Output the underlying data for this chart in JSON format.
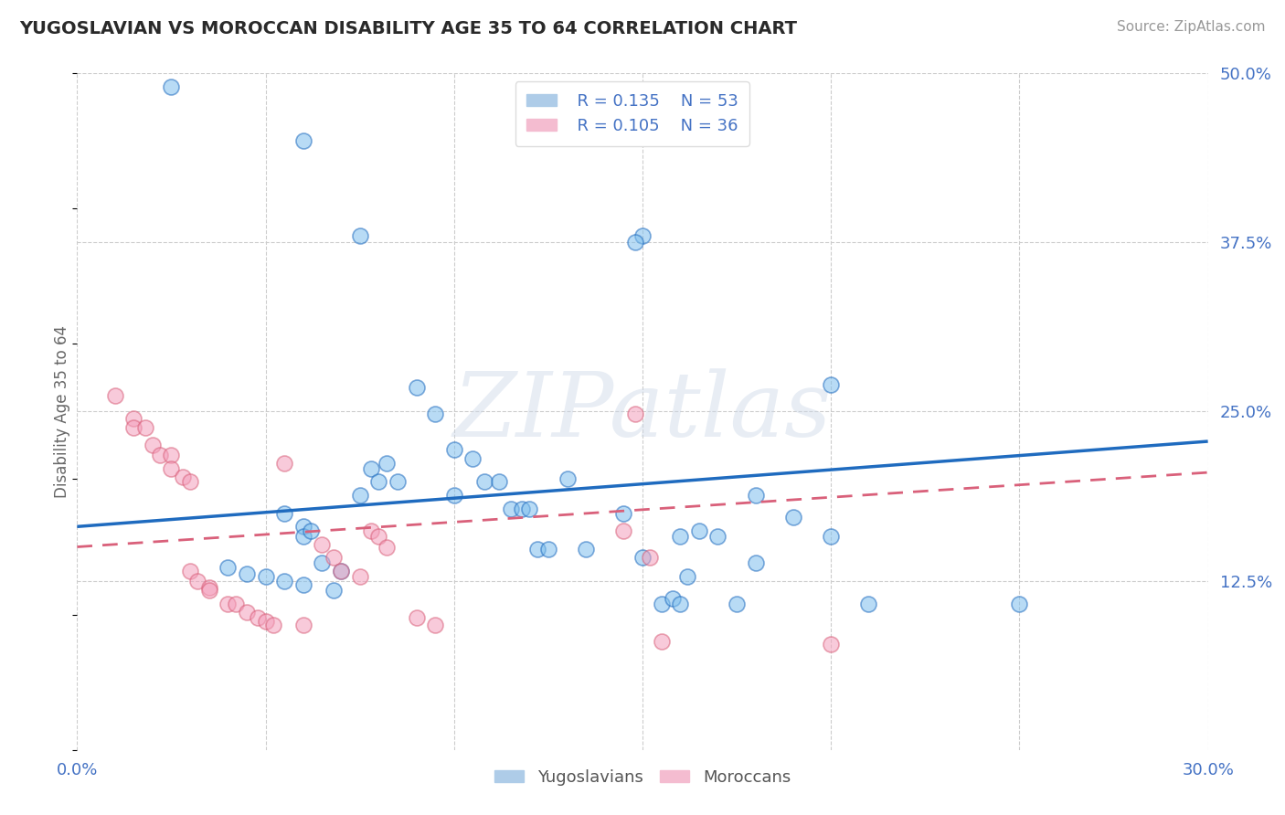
{
  "title": "YUGOSLAVIAN VS MOROCCAN DISABILITY AGE 35 TO 64 CORRELATION CHART",
  "source": "Source: ZipAtlas.com",
  "ylabel": "Disability Age 35 to 64",
  "xlim": [
    0.0,
    0.3
  ],
  "ylim": [
    0.0,
    0.5
  ],
  "xtick_positions": [
    0.0,
    0.05,
    0.1,
    0.15,
    0.2,
    0.25,
    0.3
  ],
  "xtick_labels": [
    "0.0%",
    "",
    "",
    "",
    "",
    "",
    "30.0%"
  ],
  "ytick_positions": [
    0.0,
    0.125,
    0.25,
    0.375,
    0.5
  ],
  "ytick_labels_right": [
    "",
    "12.5%",
    "25.0%",
    "37.5%",
    "50.0%"
  ],
  "legend_r1": "R = 0.135",
  "legend_n1": "N = 53",
  "legend_r2": "R = 0.105",
  "legend_n2": "N = 36",
  "blue_color": "#7fbfed",
  "pink_color": "#f4a0bc",
  "blue_line_color": "#1f6bbf",
  "pink_line_color": "#d9607a",
  "axis_color": "#4472c4",
  "watermark": "ZIPatlas",
  "blue_line_x": [
    0.0,
    0.3
  ],
  "blue_line_y": [
    0.165,
    0.228
  ],
  "pink_line_x": [
    0.0,
    0.3
  ],
  "pink_line_y": [
    0.15,
    0.205
  ],
  "yugoslav_points": [
    [
      0.025,
      0.49
    ],
    [
      0.06,
      0.45
    ],
    [
      0.075,
      0.38
    ],
    [
      0.15,
      0.38
    ],
    [
      0.148,
      0.375
    ],
    [
      0.04,
      0.135
    ],
    [
      0.045,
      0.13
    ],
    [
      0.05,
      0.128
    ],
    [
      0.055,
      0.125
    ],
    [
      0.055,
      0.175
    ],
    [
      0.06,
      0.165
    ],
    [
      0.06,
      0.158
    ],
    [
      0.06,
      0.122
    ],
    [
      0.062,
      0.162
    ],
    [
      0.065,
      0.138
    ],
    [
      0.068,
      0.118
    ],
    [
      0.07,
      0.132
    ],
    [
      0.075,
      0.188
    ],
    [
      0.078,
      0.208
    ],
    [
      0.08,
      0.198
    ],
    [
      0.082,
      0.212
    ],
    [
      0.085,
      0.198
    ],
    [
      0.09,
      0.268
    ],
    [
      0.095,
      0.248
    ],
    [
      0.1,
      0.222
    ],
    [
      0.1,
      0.188
    ],
    [
      0.105,
      0.215
    ],
    [
      0.108,
      0.198
    ],
    [
      0.112,
      0.198
    ],
    [
      0.115,
      0.178
    ],
    [
      0.118,
      0.178
    ],
    [
      0.12,
      0.178
    ],
    [
      0.122,
      0.148
    ],
    [
      0.125,
      0.148
    ],
    [
      0.13,
      0.2
    ],
    [
      0.135,
      0.148
    ],
    [
      0.15,
      0.142
    ],
    [
      0.155,
      0.108
    ],
    [
      0.158,
      0.112
    ],
    [
      0.16,
      0.108
    ],
    [
      0.162,
      0.128
    ],
    [
      0.165,
      0.162
    ],
    [
      0.17,
      0.158
    ],
    [
      0.175,
      0.108
    ],
    [
      0.18,
      0.188
    ],
    [
      0.18,
      0.138
    ],
    [
      0.19,
      0.172
    ],
    [
      0.2,
      0.27
    ],
    [
      0.2,
      0.158
    ],
    [
      0.145,
      0.175
    ],
    [
      0.16,
      0.158
    ],
    [
      0.21,
      0.108
    ],
    [
      0.25,
      0.108
    ]
  ],
  "moroccan_points": [
    [
      0.01,
      0.262
    ],
    [
      0.015,
      0.245
    ],
    [
      0.015,
      0.238
    ],
    [
      0.018,
      0.238
    ],
    [
      0.02,
      0.225
    ],
    [
      0.022,
      0.218
    ],
    [
      0.025,
      0.218
    ],
    [
      0.025,
      0.208
    ],
    [
      0.028,
      0.202
    ],
    [
      0.03,
      0.198
    ],
    [
      0.03,
      0.132
    ],
    [
      0.032,
      0.125
    ],
    [
      0.035,
      0.12
    ],
    [
      0.035,
      0.118
    ],
    [
      0.04,
      0.108
    ],
    [
      0.042,
      0.108
    ],
    [
      0.045,
      0.102
    ],
    [
      0.048,
      0.098
    ],
    [
      0.05,
      0.095
    ],
    [
      0.052,
      0.092
    ],
    [
      0.055,
      0.212
    ],
    [
      0.06,
      0.092
    ],
    [
      0.065,
      0.152
    ],
    [
      0.068,
      0.142
    ],
    [
      0.07,
      0.132
    ],
    [
      0.075,
      0.128
    ],
    [
      0.078,
      0.162
    ],
    [
      0.08,
      0.158
    ],
    [
      0.082,
      0.15
    ],
    [
      0.09,
      0.098
    ],
    [
      0.095,
      0.092
    ],
    [
      0.148,
      0.248
    ],
    [
      0.152,
      0.142
    ],
    [
      0.155,
      0.08
    ],
    [
      0.145,
      0.162
    ],
    [
      0.2,
      0.078
    ]
  ]
}
